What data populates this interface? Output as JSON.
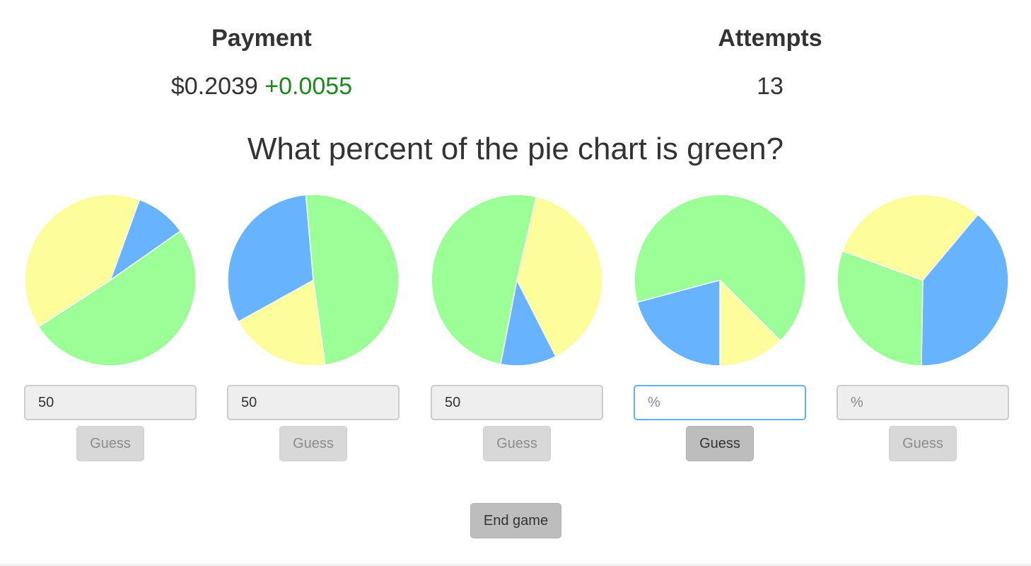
{
  "header": {
    "payment_title": "Payment",
    "payment_value": "$0.2039",
    "payment_delta": "+0.0055",
    "attempts_title": "Attempts",
    "attempts_value": "13"
  },
  "question": "What percent of the pie chart is green?",
  "colors": {
    "green": "#9cfe97",
    "blue": "#68b3fe",
    "yellow": "#fefd9b",
    "delta": "#1a8a1a",
    "active_border": "#66afe9"
  },
  "charts": [
    {
      "input_value": "50",
      "input_placeholder": "%",
      "button_label": "Guess",
      "active": false,
      "slices": [
        {
          "color": "blue",
          "start": 20,
          "end": 55
        },
        {
          "color": "green",
          "start": 55,
          "end": 237
        },
        {
          "color": "yellow",
          "start": 237,
          "end": 380
        }
      ]
    },
    {
      "input_value": "50",
      "input_placeholder": "%",
      "button_label": "Guess",
      "active": false,
      "slices": [
        {
          "color": "green",
          "start": -5,
          "end": 172
        },
        {
          "color": "yellow",
          "start": 172,
          "end": 241
        },
        {
          "color": "blue",
          "start": 241,
          "end": 355
        }
      ]
    },
    {
      "input_value": "50",
      "input_placeholder": "%",
      "button_label": "Guess",
      "active": false,
      "slices": [
        {
          "color": "yellow",
          "start": 13,
          "end": 153
        },
        {
          "color": "blue",
          "start": 153,
          "end": 191
        },
        {
          "color": "green",
          "start": 191,
          "end": 373
        }
      ]
    },
    {
      "input_value": "",
      "input_placeholder": "%",
      "button_label": "Guess",
      "active": true,
      "slices": [
        {
          "color": "green",
          "start": -105,
          "end": 135
        },
        {
          "color": "yellow",
          "start": 135,
          "end": 180
        },
        {
          "color": "blue",
          "start": 180,
          "end": 255
        }
      ]
    },
    {
      "input_value": "",
      "input_placeholder": "%",
      "button_label": "Guess",
      "active": false,
      "slices": [
        {
          "color": "blue",
          "start": 40,
          "end": 181
        },
        {
          "color": "green",
          "start": 181,
          "end": 290
        },
        {
          "color": "yellow",
          "start": 290,
          "end": 400
        }
      ]
    }
  ],
  "end_game_label": "End game"
}
